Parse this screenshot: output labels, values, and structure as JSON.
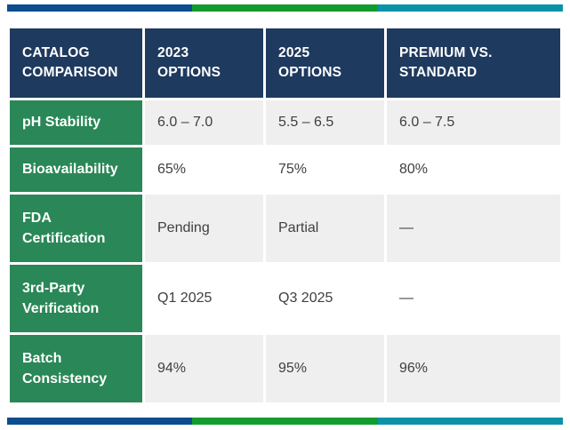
{
  "accent_bar": {
    "segment_colors": [
      "#0b4d8e",
      "#149b2e",
      "#0a93a8"
    ]
  },
  "table": {
    "headers": [
      "CATALOG COMPARISON",
      "2023 OPTIONS",
      "2025 OPTIONS",
      "PREMIUM VS. STANDARD"
    ],
    "rows": [
      {
        "label": "pH Stability",
        "values": [
          "6.0 – 7.0",
          "5.5 – 6.5",
          "6.0 – 7.5"
        ]
      },
      {
        "label": "Bioavailability",
        "values": [
          "65%",
          "75%",
          "80%"
        ]
      },
      {
        "label": "FDA Certification",
        "values": [
          "Pending",
          "Partial",
          "—"
        ]
      },
      {
        "label": "3rd-Party Verification",
        "values": [
          "Q1 2025",
          "Q3 2025",
          "—"
        ]
      },
      {
        "label": "Batch Consistency",
        "values": [
          "94%",
          "95%",
          "96%"
        ]
      }
    ],
    "colors": {
      "header_bg": "#1f3a5f",
      "header_text": "#ffffff",
      "label_bg": "#2a8757",
      "label_text": "#ffffff",
      "row_bg": "#ffffff",
      "row_alt_bg": "#efefef",
      "cell_text": "#3f3f3f"
    }
  },
  "chart_data": {
    "type": "table",
    "title": "CATALOG COMPARISON",
    "columns": [
      "CATALOG COMPARISON",
      "2023 OPTIONS",
      "2025 OPTIONS",
      "PREMIUM VS. STANDARD"
    ],
    "categories": [
      "pH Stability",
      "Bioavailability",
      "FDA Certification",
      "3rd-Party Verification",
      "Batch Consistency"
    ],
    "series": [
      {
        "name": "2023 OPTIONS",
        "values": [
          "6.0 – 7.0",
          "65%",
          "Pending",
          "Q1 2025",
          "94%"
        ]
      },
      {
        "name": "2025 OPTIONS",
        "values": [
          "5.5 – 6.5",
          "75%",
          "Partial",
          "Q3 2025",
          "95%"
        ]
      },
      {
        "name": "PREMIUM VS. STANDARD",
        "values": [
          "6.0 – 7.5",
          "80%",
          "—",
          "—",
          "96%"
        ]
      }
    ]
  }
}
